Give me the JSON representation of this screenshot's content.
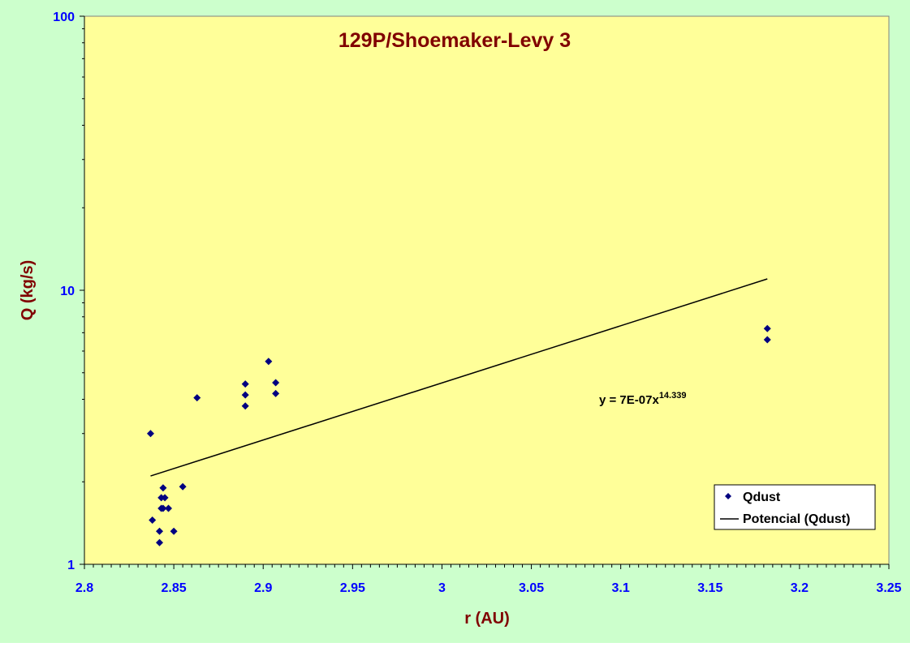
{
  "colors": {
    "outer_bg": "#ccffcc",
    "plot_bg": "#ffff99",
    "title": "#800000",
    "axis_title": "#800000",
    "tick_label": "#0000ff",
    "marker": "#000080",
    "trendline": "#000000"
  },
  "chart_data": {
    "type": "scatter",
    "title": "129P/Shoemaker-Levy 3",
    "xlabel": "r (AU)",
    "ylabel": "Q (kg/s)",
    "xlim": [
      2.8,
      3.25
    ],
    "ylim": [
      1,
      100
    ],
    "y_scale": "log",
    "x_ticks": [
      "2.8",
      "2.85",
      "2.9",
      "2.95",
      "3",
      "3.05",
      "3.1",
      "3.15",
      "3.2",
      "3.25"
    ],
    "y_ticks": [
      "1",
      "10",
      "100"
    ],
    "grid": false,
    "legend_position": "bottom-right",
    "series": [
      {
        "name": "Qdust",
        "marker": "diamond",
        "x": [
          2.837,
          2.838,
          2.842,
          2.842,
          2.843,
          2.843,
          2.844,
          2.844,
          2.845,
          2.847,
          2.85,
          2.855,
          2.863,
          2.89,
          2.89,
          2.89,
          2.903,
          2.907,
          2.907,
          3.182,
          3.182
        ],
        "y": [
          3.0,
          1.45,
          1.2,
          1.32,
          1.6,
          1.75,
          1.9,
          1.6,
          1.75,
          1.6,
          1.32,
          1.92,
          4.05,
          4.55,
          4.15,
          3.78,
          5.5,
          4.6,
          4.2,
          7.25,
          6.6
        ]
      },
      {
        "name": "Potencial (Qdust)",
        "type": "trendline",
        "x_range": [
          2.837,
          3.182
        ],
        "y_range": [
          2.1,
          11.0
        ]
      }
    ],
    "annotation": {
      "equation_base": "y = 7E-07x",
      "equation_exponent": "14.339"
    }
  }
}
